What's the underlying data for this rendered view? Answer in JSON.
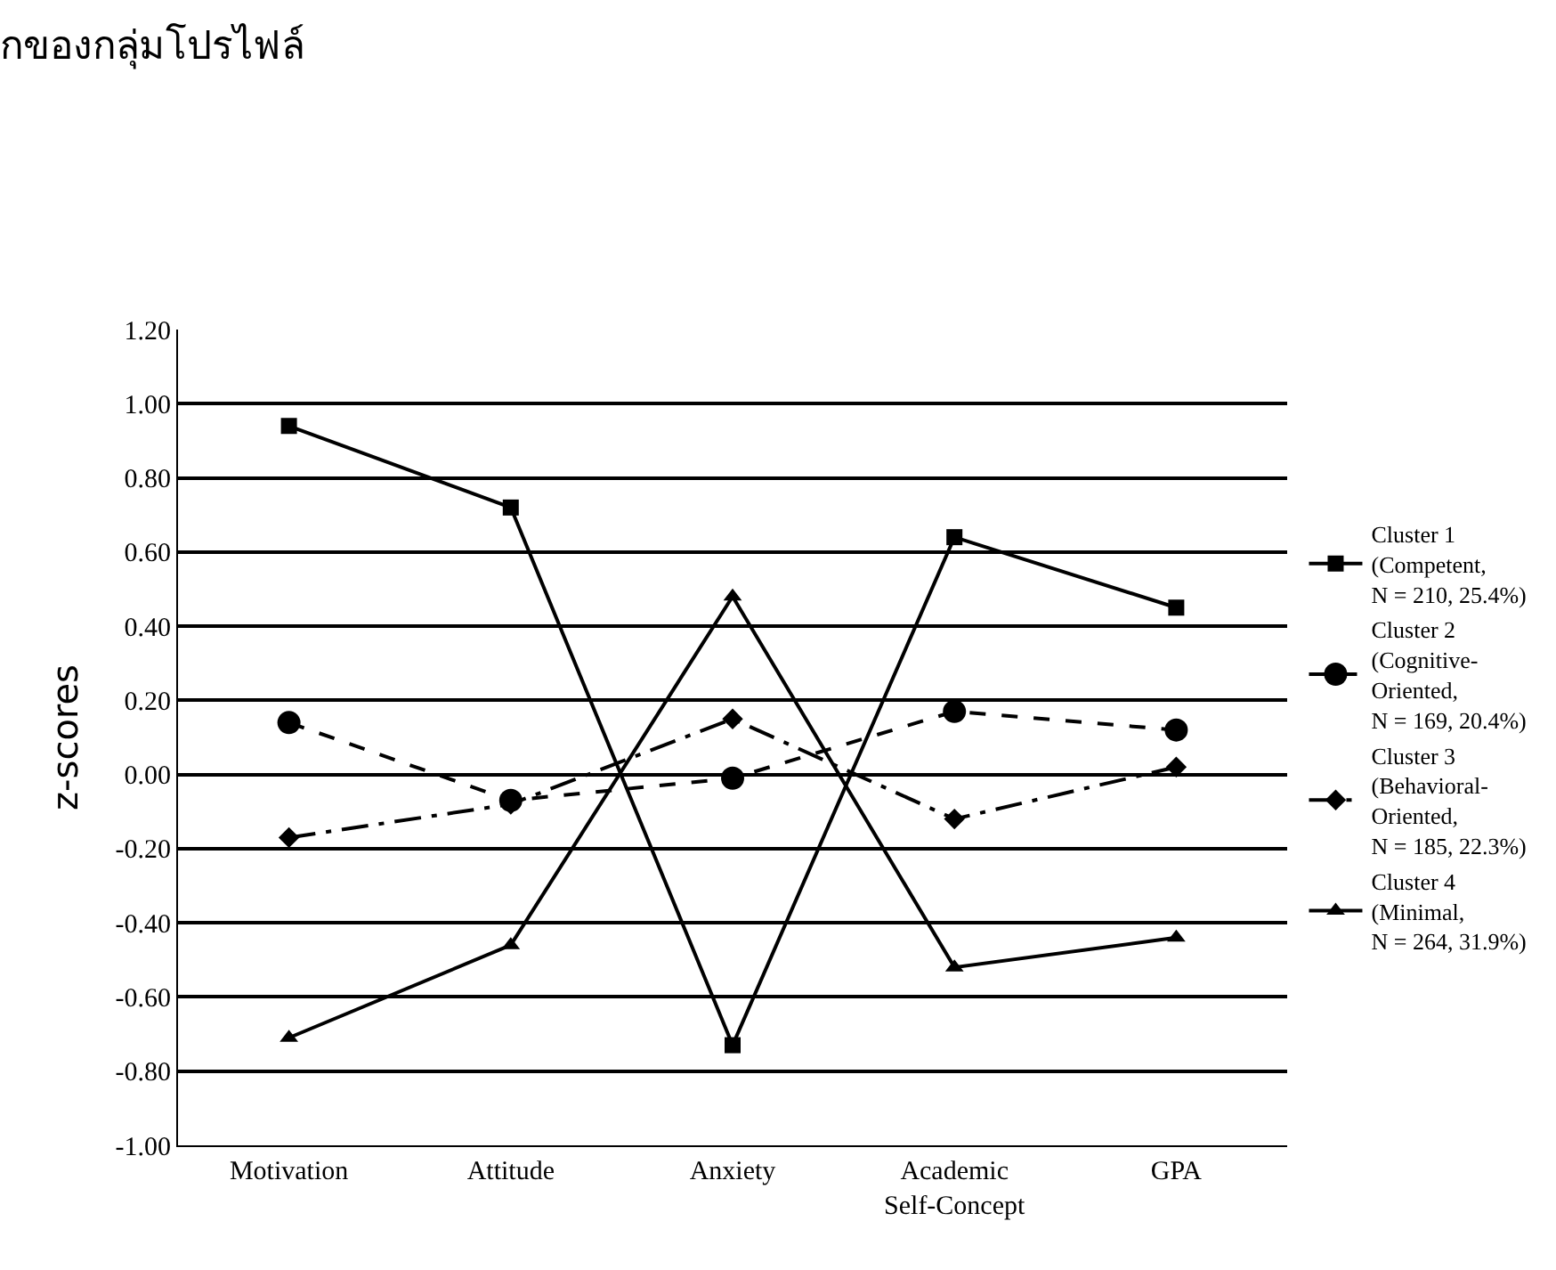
{
  "chart_data": {
    "type": "line",
    "title": "กของกลุ่มโปรไฟล์",
    "ylabel": "z-scores",
    "categories": [
      "Motivation",
      "Attitude",
      "Anxiety",
      "Academic\nSelf-Concept",
      "GPA"
    ],
    "series": [
      {
        "name": "Cluster 1\n(Competent,\nN = 210, 25.4%)",
        "color": "#000000",
        "marker": "square",
        "line_style": "solid",
        "values": [
          0.94,
          0.72,
          -0.73,
          0.64,
          0.45
        ]
      },
      {
        "name": "Cluster 2\n(Cognitive-\nOriented,\nN = 169, 20.4%)",
        "color": "#000000",
        "marker": "circle",
        "line_style": "dashed",
        "values": [
          0.14,
          -0.07,
          -0.01,
          0.17,
          0.12
        ]
      },
      {
        "name": "Cluster 3\n(Behavioral-\nOriented,\nN = 185, 22.3%)",
        "color": "#000000",
        "marker": "diamond",
        "line_style": "dashdot",
        "values": [
          -0.17,
          -0.08,
          0.15,
          -0.12,
          0.02
        ]
      },
      {
        "name": "Cluster 4\n(Minimal,\nN = 264, 31.9%)",
        "color": "#000000",
        "marker": "triangle",
        "line_style": "solid",
        "values": [
          -0.71,
          -0.46,
          0.48,
          -0.52,
          -0.44
        ]
      }
    ],
    "ylim": [
      -1.0,
      1.2
    ],
    "yticks": [
      {
        "value": -1.0,
        "label": "-1.00"
      },
      {
        "value": -0.8,
        "label": "-0.80"
      },
      {
        "value": -0.6,
        "label": "-0.60"
      },
      {
        "value": -0.4,
        "label": "-0.40"
      },
      {
        "value": -0.2,
        "label": "-0.20"
      },
      {
        "value": 0.0,
        "label": "0.00"
      },
      {
        "value": 0.2,
        "label": "0.20"
      },
      {
        "value": 0.4,
        "label": "0.40"
      },
      {
        "value": 0.6,
        "label": "0.60"
      },
      {
        "value": 0.8,
        "label": "0.80"
      },
      {
        "value": 1.0,
        "label": "1.00"
      },
      {
        "value": 1.2,
        "label": "1.20"
      }
    ],
    "grid": "y",
    "legend": "right"
  }
}
